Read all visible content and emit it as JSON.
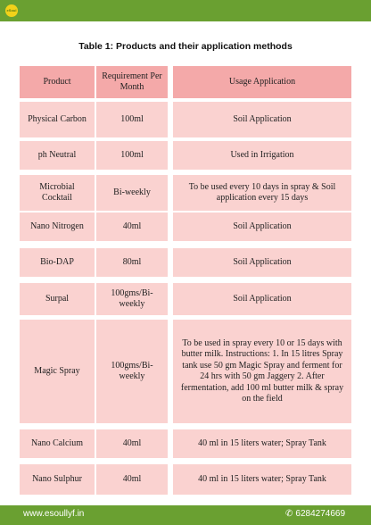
{
  "title": "Table 1: Products and their application methods",
  "table": {
    "headers": [
      "Product",
      "Requirement Per Month",
      "Usage Application"
    ],
    "rows": [
      [
        "Physical Carbon",
        "100ml",
        "Soil Application"
      ],
      [
        "ph Neutral",
        "100ml",
        "Used in Irrigation"
      ],
      [
        "Microbial Cocktail",
        "Bi-weekly",
        "To be used every 10 days in spray & Soil application every 15 days"
      ],
      [
        "Nano Nitrogen",
        "40ml",
        "Soil Application"
      ],
      [
        "Bio-DAP",
        "80ml",
        "Soil Application"
      ],
      [
        "Surpal",
        "100gms/Bi-weekly",
        "Soil Application"
      ],
      [
        "Magic Spray",
        "100gms/Bi-weekly",
        "To be used in spray every 10  or 15 days with butter milk. Instructions: 1. In 15 litres Spray tank use 50 gm Magic Spray and ferment for 24 hrs with 50 gm Jaggery 2. After fermentation, add 100 ml butter milk & spray on the field"
      ],
      [
        "Nano Calcium",
        "40ml",
        "40 ml in 15 liters water; Spray Tank"
      ],
      [
        "Nano Sulphur",
        "40ml",
        "40 ml in 15 liters water; Spray Tank"
      ]
    ]
  },
  "footer": {
    "website": "www.esoullyf.in",
    "phone": "6284274669"
  },
  "logo_text": "eSoul",
  "colors": {
    "bar": "#6aa031",
    "header_cell": "#f4a9a9",
    "body_cell": "#fad2d0"
  }
}
